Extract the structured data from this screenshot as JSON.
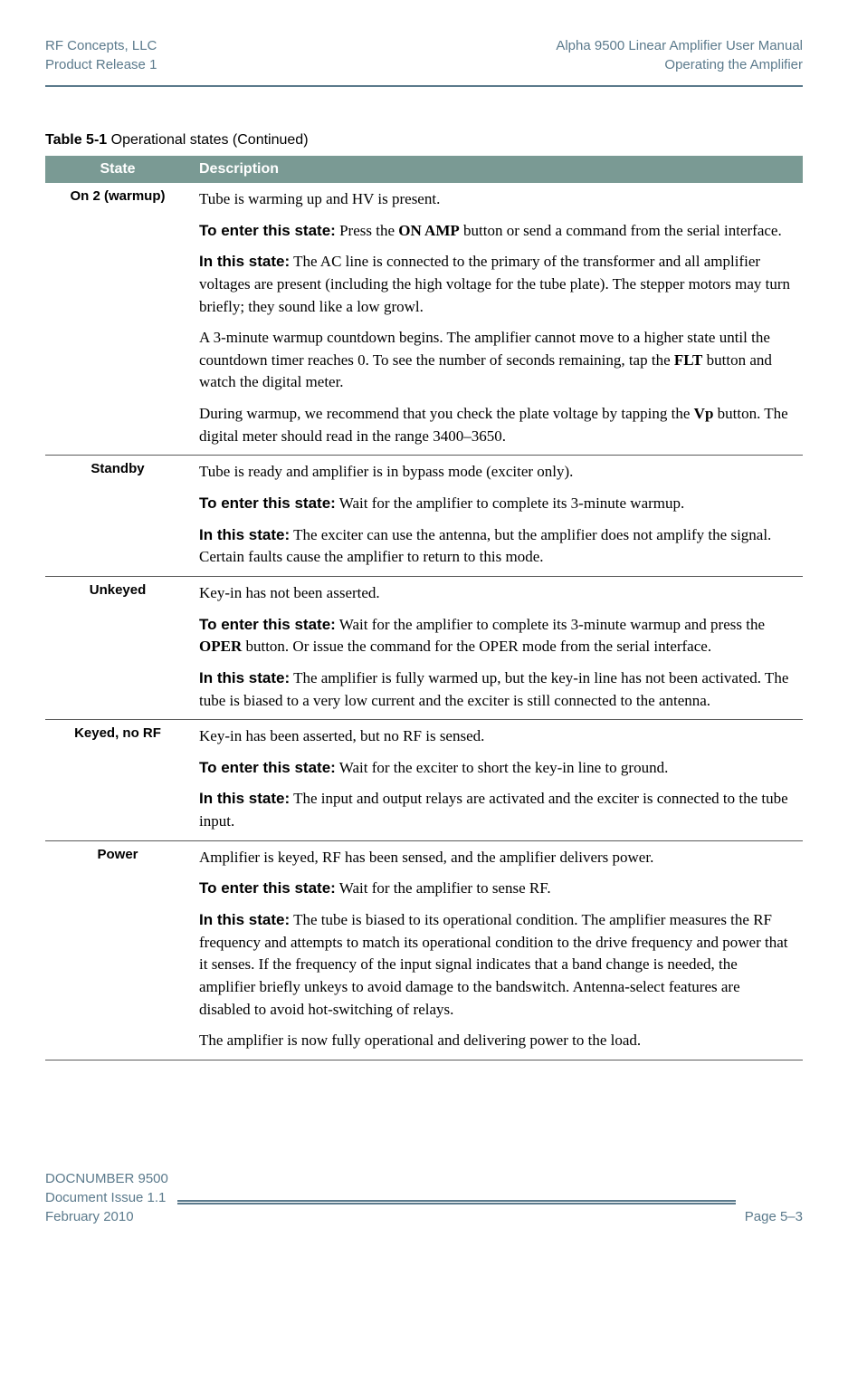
{
  "header": {
    "left_line1": "RF Concepts, LLC",
    "left_line2": "Product Release 1",
    "right_line1": "Alpha 9500 Linear Amplifier User Manual",
    "right_line2": "Operating the Amplifier"
  },
  "table": {
    "caption_label": "Table 5-1",
    "caption_text": "Operational states (Continued)",
    "columns": [
      "State",
      "Description"
    ],
    "header_bg": "#7a9a94",
    "header_color": "#ffffff",
    "border_color": "#5a5a5a",
    "rows": [
      {
        "state": "On 2 (warmup)",
        "paragraphs": [
          [
            {
              "t": "Tube is warming up and HV is present."
            }
          ],
          [
            {
              "t": "To enter this state:",
              "b": "sans"
            },
            {
              "t": " Press the "
            },
            {
              "t": "ON AMP",
              "b": "serif"
            },
            {
              "t": " button or send a command from the serial interface."
            }
          ],
          [
            {
              "t": "In this state:",
              "b": "sans"
            },
            {
              "t": " The AC line is connected to the primary of the transformer and all amplifier voltages are present (including the high voltage for the tube plate). The stepper motors may turn briefly; they sound like a low growl."
            }
          ],
          [
            {
              "t": "A 3-minute warmup countdown begins. The amplifier cannot move to a higher state until the countdown timer reaches 0. To see the number of seconds remaining, tap the "
            },
            {
              "t": "FLT",
              "b": "serif"
            },
            {
              "t": " button and watch the digital meter."
            }
          ],
          [
            {
              "t": "During warmup, we recommend that you check the plate voltage by tapping the "
            },
            {
              "t": "Vp",
              "b": "serif"
            },
            {
              "t": " button. The digital meter should read in the range 3400–3650."
            }
          ]
        ]
      },
      {
        "state": "Standby",
        "paragraphs": [
          [
            {
              "t": "Tube is ready and amplifier is in bypass mode (exciter only)."
            }
          ],
          [
            {
              "t": "To enter this state:",
              "b": "sans"
            },
            {
              "t": " Wait for the amplifier to complete its 3-minute warmup."
            }
          ],
          [
            {
              "t": "In this state:",
              "b": "sans"
            },
            {
              "t": " The exciter can use the antenna, but the amplifier does not amplify the signal. Certain faults cause the amplifier to return to this mode."
            }
          ]
        ]
      },
      {
        "state": "Unkeyed",
        "paragraphs": [
          [
            {
              "t": "Key-in has not been asserted."
            }
          ],
          [
            {
              "t": "To enter this state:",
              "b": "sans"
            },
            {
              "t": " Wait for the amplifier to complete its 3-minute warmup and press the "
            },
            {
              "t": "OPER",
              "b": "serif"
            },
            {
              "t": " button. Or issue the command for the OPER mode from the serial interface."
            }
          ],
          [
            {
              "t": "In this state:",
              "b": "sans"
            },
            {
              "t": " The amplifier is fully warmed up, but the key-in line has not been activated. The tube is biased to a very low current and the exciter is still connected to the antenna."
            }
          ]
        ]
      },
      {
        "state": "Keyed, no RF",
        "paragraphs": [
          [
            {
              "t": "Key-in has been asserted, but no RF is sensed."
            }
          ],
          [
            {
              "t": "To enter this state:",
              "b": "sans"
            },
            {
              "t": " Wait for the exciter to short the key-in line to ground."
            }
          ],
          [
            {
              "t": "In this state:",
              "b": "sans"
            },
            {
              "t": " The input and output relays are activated and the exciter is connected to the tube input."
            }
          ]
        ]
      },
      {
        "state": "Power",
        "paragraphs": [
          [
            {
              "t": "Amplifier is keyed, RF has been sensed, and the amplifier delivers power."
            }
          ],
          [
            {
              "t": "To enter this state:",
              "b": "sans"
            },
            {
              "t": " Wait for the amplifier to sense RF."
            }
          ],
          [
            {
              "t": "In this state:",
              "b": "sans"
            },
            {
              "t": " The tube is biased to its operational condition. The amplifier measures the RF frequency and attempts to match its operational condition to the drive frequency and power that it senses. If the frequency of the input signal indicates that a band change is needed, the amplifier briefly unkeys to avoid damage to the bandswitch. Antenna-select features are disabled to avoid hot-switching of relays."
            }
          ],
          [
            {
              "t": "The amplifier is now fully operational and delivering power to the load."
            }
          ]
        ]
      }
    ]
  },
  "footer": {
    "left_line1": "DOCNUMBER 9500",
    "left_line2": "Document Issue 1.1",
    "left_line3": "February 2010",
    "right": "Page 5–3"
  },
  "colors": {
    "accent": "#5b7a8c"
  }
}
